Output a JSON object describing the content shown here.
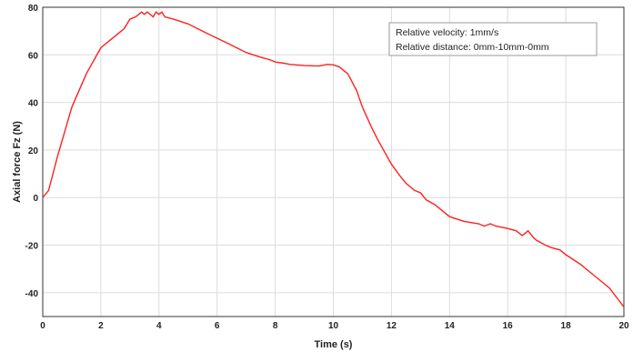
{
  "chart_data": {
    "type": "line",
    "title": "",
    "xlabel": "Time (s)",
    "ylabel": "Axial force Fz (N)",
    "xlim": [
      0,
      20
    ],
    "ylim": [
      -50,
      80
    ],
    "xticks": [
      0,
      2,
      4,
      6,
      8,
      10,
      12,
      14,
      16,
      18,
      20
    ],
    "yticks": [
      -40,
      -20,
      0,
      20,
      40,
      60,
      80
    ],
    "grid": true,
    "legend_position": "top-right",
    "annotations": [
      "Relative velocity: 1mm/s",
      "Relative distance: 0mm-10mm-0mm"
    ],
    "series": [
      {
        "color": "#ff2020",
        "x": [
          0,
          0.2,
          0.5,
          1.0,
          1.5,
          2.0,
          2.3,
          2.5,
          2.8,
          3.0,
          3.2,
          3.4,
          3.5,
          3.6,
          3.7,
          3.8,
          3.9,
          4.0,
          4.1,
          4.2,
          4.5,
          5.0,
          5.5,
          6.0,
          6.5,
          7.0,
          7.5,
          7.8,
          8.0,
          8.3,
          8.5,
          9.0,
          9.5,
          9.8,
          10.0,
          10.2,
          10.5,
          10.8,
          11.0,
          11.3,
          11.5,
          12.0,
          12.3,
          12.5,
          12.8,
          13.0,
          13.2,
          13.5,
          14.0,
          14.5,
          15.0,
          15.2,
          15.4,
          15.6,
          16.0,
          16.3,
          16.5,
          16.7,
          16.9,
          17.0,
          17.3,
          17.5,
          17.8,
          18.0,
          18.5,
          19.0,
          19.5,
          20.0
        ],
        "y": [
          0,
          3,
          17,
          38,
          52,
          63,
          66,
          68,
          71,
          75,
          76,
          78,
          77,
          78,
          77,
          76,
          78,
          77,
          78,
          76,
          75,
          73,
          70,
          67,
          64,
          61,
          59,
          58,
          57,
          56.5,
          56,
          55.5,
          55.3,
          56,
          55.8,
          55,
          52,
          45,
          38,
          30,
          25,
          14,
          9,
          6,
          3,
          2,
          -1,
          -3,
          -8,
          -10,
          -11,
          -12,
          -11,
          -12,
          -13,
          -14,
          -16,
          -14,
          -17,
          -18,
          -20,
          -21,
          -22,
          -24,
          -28,
          -33,
          -38,
          -46
        ]
      }
    ]
  }
}
